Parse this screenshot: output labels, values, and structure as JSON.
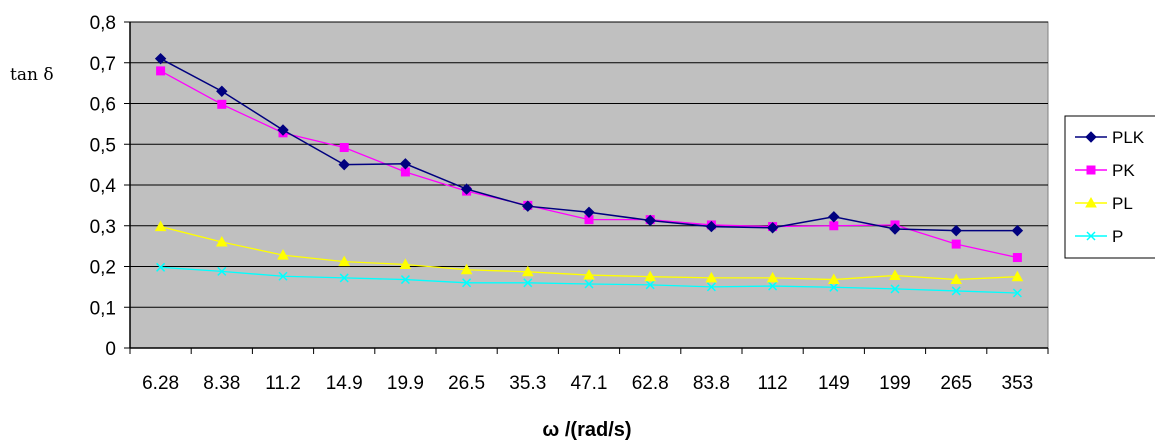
{
  "chart_data": {
    "type": "line",
    "xlabel": "ω /(rad/s)",
    "ylabel": "tan δ",
    "categories": [
      "6.28",
      "8.38",
      "11.2",
      "14.9",
      "19.9",
      "26.5",
      "35.3",
      "47.1",
      "62.8",
      "83.8",
      "112",
      "149",
      "199",
      "265",
      "353"
    ],
    "ylim": [
      0,
      0.8
    ],
    "yticks": [
      "0",
      "0,1",
      "0,2",
      "0,3",
      "0,4",
      "0,5",
      "0,6",
      "0,7",
      "0,8"
    ],
    "grid": true,
    "legend_position": "right",
    "series": [
      {
        "name": "PLK",
        "color": "#00007f",
        "marker": "diamond",
        "values": [
          0.71,
          0.63,
          0.535,
          0.45,
          0.452,
          0.39,
          0.348,
          0.333,
          0.313,
          0.298,
          0.295,
          0.322,
          0.292,
          0.288,
          0.288
        ]
      },
      {
        "name": "PK",
        "color": "#ff00ff",
        "marker": "square",
        "values": [
          0.68,
          0.598,
          0.528,
          0.492,
          0.432,
          0.385,
          0.35,
          0.315,
          0.315,
          0.302,
          0.298,
          0.3,
          0.302,
          0.255,
          0.222
        ]
      },
      {
        "name": "PL",
        "color": "#ffff00",
        "marker": "triangle",
        "values": [
          0.298,
          0.26,
          0.228,
          0.212,
          0.205,
          0.192,
          0.187,
          0.179,
          0.175,
          0.172,
          0.172,
          0.168,
          0.178,
          0.168,
          0.175
        ]
      },
      {
        "name": "P",
        "color": "#00ffff",
        "marker": "x",
        "values": [
          0.198,
          0.188,
          0.176,
          0.172,
          0.168,
          0.16,
          0.16,
          0.157,
          0.155,
          0.15,
          0.152,
          0.149,
          0.145,
          0.14,
          0.135
        ]
      }
    ]
  }
}
